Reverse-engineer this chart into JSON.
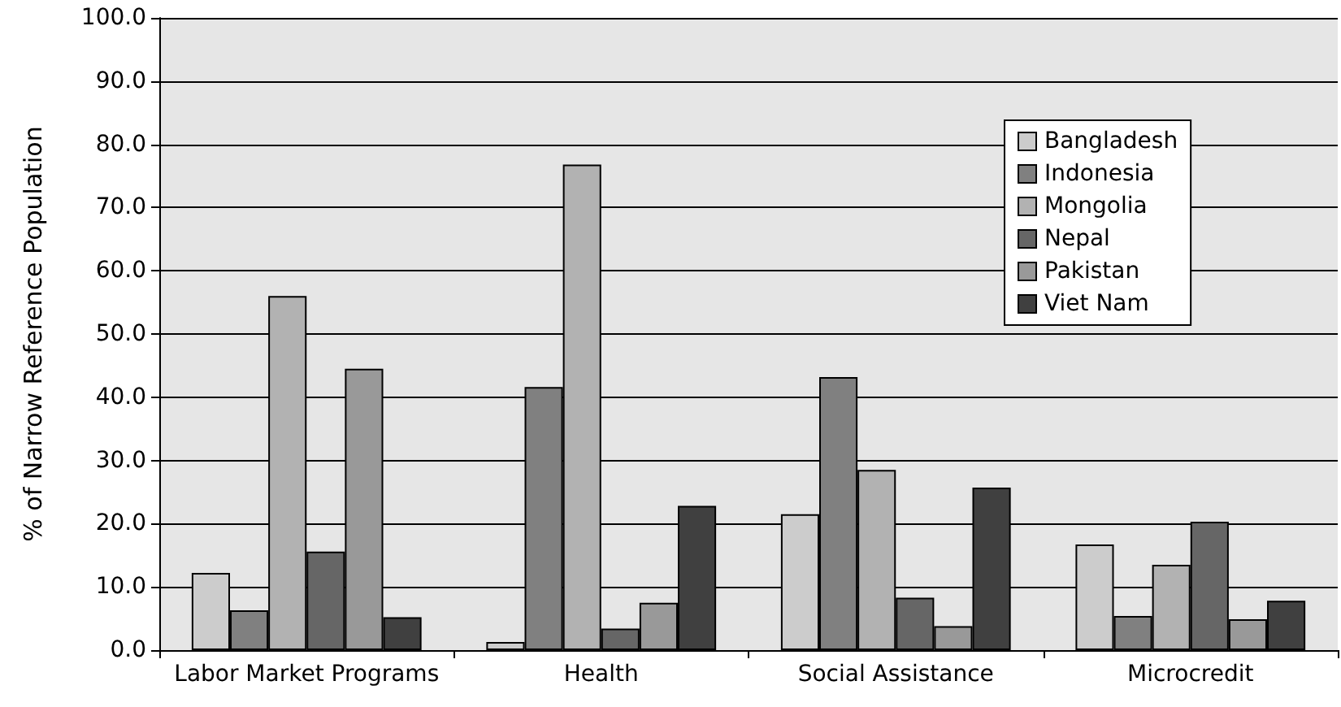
{
  "chart_data": {
    "type": "bar",
    "ylabel": "% of Narrow Reference Population",
    "categories": [
      "Labor Market Programs",
      "Health",
      "Social Assistance",
      "Microcredit"
    ],
    "series": [
      {
        "name": "Bangladesh",
        "color": "#cccccc",
        "values": [
          12.2,
          1.3,
          21.5,
          16.7
        ]
      },
      {
        "name": "Indonesia",
        "color": "#808080",
        "values": [
          6.3,
          41.6,
          43.2,
          5.4
        ]
      },
      {
        "name": "Mongolia",
        "color": "#b2b2b2",
        "values": [
          56.0,
          76.8,
          28.5,
          13.5
        ]
      },
      {
        "name": "Nepal",
        "color": "#666666",
        "values": [
          15.6,
          3.4,
          8.3,
          20.3
        ]
      },
      {
        "name": "Pakistan",
        "color": "#999999",
        "values": [
          44.5,
          7.5,
          3.8,
          4.9
        ]
      },
      {
        "name": "Viet Nam",
        "color": "#404040",
        "values": [
          5.2,
          22.8,
          25.7,
          7.8
        ]
      }
    ],
    "ylim": [
      0,
      100
    ],
    "yticks": [
      {
        "value": 0,
        "label": "0.0"
      },
      {
        "value": 10,
        "label": "10.0"
      },
      {
        "value": 20,
        "label": "20.0"
      },
      {
        "value": 30,
        "label": "30.0"
      },
      {
        "value": 40,
        "label": "40.0"
      },
      {
        "value": 50,
        "label": "50.0"
      },
      {
        "value": 60,
        "label": "60.0"
      },
      {
        "value": 70,
        "label": "70.0"
      },
      {
        "value": 80,
        "label": "80.0"
      },
      {
        "value": 90,
        "label": "90.0"
      },
      {
        "value": 100,
        "label": "100.0"
      }
    ],
    "grid": "y",
    "legend": "top right"
  }
}
